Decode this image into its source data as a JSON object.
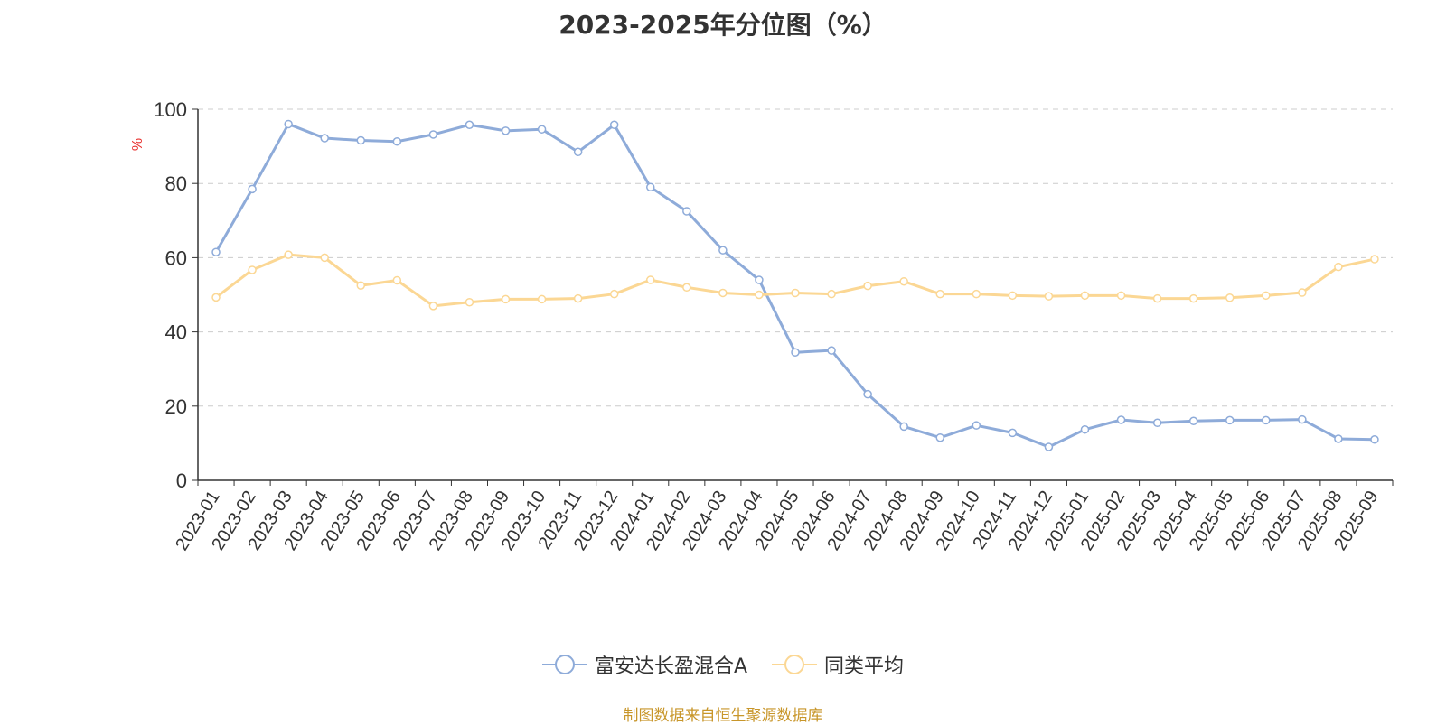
{
  "title": "2023-2025年分位图（%）",
  "source_note": "制图数据来自恒生聚源数据库",
  "colors": {
    "series_a": "#8eabd9",
    "series_b": "#fbd794",
    "unit_label": "#e8312f",
    "grid": "#cccccc",
    "axis": "#333333",
    "source": "#c8962a"
  },
  "chart_data": {
    "type": "line",
    "title": "2023-2025年分位图（%）",
    "xlabel": "",
    "ylabel": "%",
    "ylim": [
      0,
      100
    ],
    "yticks": [
      0,
      20,
      40,
      60,
      80,
      100
    ],
    "grid": "horizontal dashed",
    "legend_position": "bottom",
    "categories": [
      "2023-01",
      "2023-02",
      "2023-03",
      "2023-04",
      "2023-05",
      "2023-06",
      "2023-07",
      "2023-08",
      "2023-09",
      "2023-10",
      "2023-11",
      "2023-12",
      "2024-01",
      "2024-02",
      "2024-03",
      "2024-04",
      "2024-05",
      "2024-06",
      "2024-07",
      "2024-08",
      "2024-09",
      "2024-10",
      "2024-11",
      "2024-12",
      "2025-01",
      "2025-02",
      "2025-03",
      "2025-04",
      "2025-05",
      "2025-06",
      "2025-07",
      "2025-08",
      "2025-09"
    ],
    "series": [
      {
        "name": "富安达长盈混合A",
        "values": [
          61.5,
          78.5,
          96,
          92.2,
          91.6,
          91.3,
          93.2,
          95.8,
          94.2,
          94.6,
          88.5,
          95.8,
          79,
          72.5,
          62,
          54,
          34.5,
          35,
          23.2,
          14.5,
          11.5,
          14.8,
          12.8,
          9,
          13.7,
          16.3,
          15.5,
          16,
          16.2,
          16.2,
          16.4,
          11.2,
          11
        ]
      },
      {
        "name": "同类平均",
        "values": [
          49.3,
          56.7,
          60.8,
          60,
          52.5,
          53.9,
          47,
          48,
          48.8,
          48.8,
          49,
          50.2,
          54,
          52,
          50.5,
          50,
          50.5,
          50.2,
          52.4,
          53.6,
          50.2,
          50.2,
          49.8,
          49.6,
          49.8,
          49.8,
          49,
          49,
          49.2,
          49.8,
          50.6,
          57.5,
          59.6
        ]
      }
    ]
  }
}
